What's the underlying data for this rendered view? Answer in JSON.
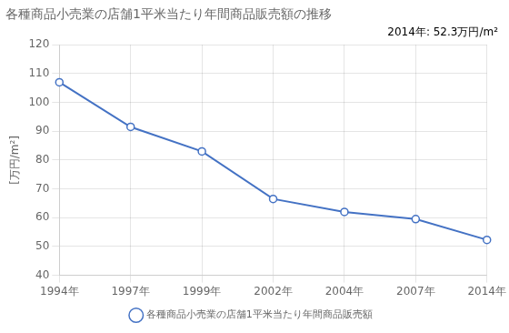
{
  "chart_data": {
    "type": "line",
    "title": "各種商品小売業の店舗1平米当たり年間商品販売額の推移",
    "annotation": "2014年: 52.3万円/m²",
    "ylabel": "[万円/m²]",
    "categories": [
      "1994年",
      "1997年",
      "1999年",
      "2002年",
      "2004年",
      "2007年",
      "2014年"
    ],
    "series": [
      {
        "name": "各種商品小売業の店舗1平米当たり年間商品販売額",
        "color": "#4472C4",
        "marker": "circle",
        "values": [
          107.0,
          91.5,
          83.0,
          66.5,
          62.0,
          59.5,
          52.3
        ]
      }
    ],
    "ylim": [
      40,
      120
    ],
    "yticks": [
      40,
      50,
      60,
      70,
      80,
      90,
      100,
      110,
      120
    ],
    "grid": true,
    "legend": "bottom"
  }
}
